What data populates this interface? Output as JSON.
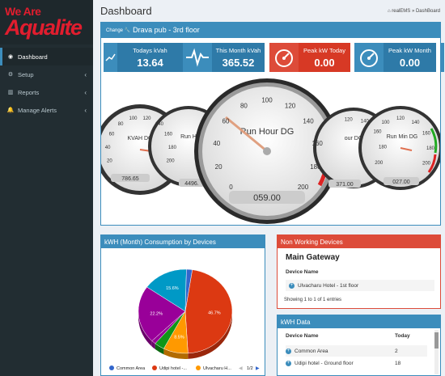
{
  "brand": {
    "line1": "We Are",
    "line2": "Aqualite"
  },
  "sidebar": {
    "items": [
      {
        "label": "Dashboard",
        "icon": "dashboard-icon",
        "active": true
      },
      {
        "label": "Setup",
        "icon": "gear-icon",
        "chevron": "‹"
      },
      {
        "label": "Reports",
        "icon": "bar-chart-icon",
        "chevron": "‹"
      },
      {
        "label": "Manage Alerts",
        "icon": "bell-icon",
        "chevron": "‹"
      }
    ]
  },
  "header": {
    "title": "Dashboard",
    "breadcrumb": "realEMS » DashBoard"
  },
  "site": {
    "change_label": "Change",
    "name": "Drava pub - 3rd floor"
  },
  "tiles": [
    {
      "label": "Todays kVah",
      "value": "13.64",
      "color": "#3c8dbc"
    },
    {
      "label": "This Month kVah",
      "value": "365.52",
      "color": "#3c8dbc"
    },
    {
      "label": "Peak kW Today",
      "value": "0.00",
      "color": "#dd4b39"
    },
    {
      "label": "Peak kW Month",
      "value": "0.00",
      "color": "#3c8dbc"
    }
  ],
  "gauges": [
    {
      "name": "KVAH DG",
      "readout": "786.65",
      "ticks": [
        "20",
        "40",
        "60",
        "80",
        "100",
        "120",
        "140",
        "160",
        "180",
        "200"
      ]
    },
    {
      "name": "Run H",
      "readout": "4496.",
      "ticks": []
    },
    {
      "name": "Run Hour DG",
      "readout": "059.00",
      "ticks": [
        "0",
        "20",
        "40",
        "60",
        "80",
        "100",
        "120",
        "140",
        "160",
        "180",
        "200"
      ]
    },
    {
      "name": "our DG",
      "readout": "371.00",
      "ticks": [
        "120",
        "140",
        "160",
        "180",
        "200"
      ]
    },
    {
      "name": "Run Min DG",
      "readout": "027.00",
      "ticks": [
        "100",
        "120",
        "140",
        "160",
        "180",
        "200"
      ]
    }
  ],
  "kwh_chart": {
    "title": "kWH (Month) Consumption by Devices",
    "legend": [
      "Common Area",
      "Udipi hotel -...",
      "Ulvacharu H..."
    ],
    "pager": "1/2"
  },
  "chart_data": {
    "type": "pie",
    "title": "kWH (Month) Consumption by Devices",
    "slices": [
      {
        "label": "Udipi hotel -...",
        "value": 46.7,
        "color": "#dc3912"
      },
      {
        "label": "Ulvacharu H...",
        "value": 8.5,
        "color": "#ff9900"
      },
      {
        "label": "",
        "value": 3.5,
        "color": "#109618"
      },
      {
        "label": "",
        "value": 1.5,
        "color": "#990099"
      },
      {
        "label": "",
        "value": 22.2,
        "color": "#990099"
      },
      {
        "label": "",
        "value": 15.6,
        "color": "#0099c6"
      },
      {
        "label": "Common Area",
        "value": 2.0,
        "color": "#3366cc"
      }
    ],
    "slice_labels": [
      "46.7%",
      "8.5%",
      "22.2%",
      "15.6%"
    ],
    "legend_position": "bottom"
  },
  "non_working": {
    "title": "Non Working Devices",
    "gateway": "Main Gateway",
    "col": "Device Name",
    "rows": [
      "Ulvacharu Hotel - 1st floor"
    ],
    "info": "Showing 1 to 1 of 1 entries"
  },
  "kwh_data": {
    "title": "kWH Data",
    "col_name": "Device Name",
    "col_today": "Today",
    "rows": [
      {
        "name": "Common Area",
        "today": "2"
      },
      {
        "name": "Udipi hotel - Ground floor",
        "today": "18"
      }
    ]
  }
}
